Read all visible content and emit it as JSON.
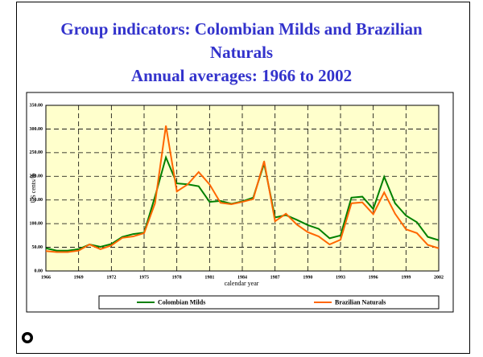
{
  "chart_data": {
    "type": "line",
    "title": "Group indicators: Colombian Milds and Brazilian Naturals",
    "subtitle": "Annual averages: 1966 to 2002",
    "x_label": "calendar year",
    "y_label": "US cents/lb",
    "x": [
      1966,
      1967,
      1968,
      1969,
      1970,
      1971,
      1972,
      1973,
      1974,
      1975,
      1976,
      1977,
      1978,
      1979,
      1980,
      1981,
      1982,
      1983,
      1984,
      1985,
      1986,
      1987,
      1988,
      1989,
      1990,
      1991,
      1992,
      1993,
      1994,
      1995,
      1996,
      1997,
      1998,
      1999,
      2000,
      2001,
      2002
    ],
    "series": [
      {
        "name": "Colombian Milds",
        "color": "#008000",
        "values": [
          48,
          43,
          43,
          46,
          56,
          51,
          57,
          72,
          78,
          81,
          157,
          240,
          185,
          183,
          179,
          146,
          148,
          142,
          147,
          155,
          227,
          113,
          118,
          108,
          97,
          89,
          69,
          75,
          155,
          157,
          131,
          199,
          143,
          117,
          103,
          72,
          65
        ]
      },
      {
        "name": "Brazilian Naturals",
        "color": "#ff6600",
        "values": [
          42,
          40,
          40,
          43,
          56,
          46,
          54,
          70,
          73,
          80,
          143,
          307,
          168,
          183,
          209,
          183,
          144,
          141,
          146,
          152,
          232,
          105,
          121,
          98,
          82,
          73,
          56,
          66,
          143,
          145,
          120,
          166,
          121,
          88,
          80,
          55,
          48
        ]
      }
    ],
    "xlim": [
      1966,
      2002
    ],
    "xticks": [
      1966,
      1969,
      1972,
      1975,
      1978,
      1981,
      1984,
      1987,
      1990,
      1993,
      1996,
      1999,
      2002
    ],
    "ylim": [
      0,
      350
    ],
    "yticks": [
      {
        "value": 0,
        "label": "0.00"
      },
      {
        "value": 50,
        "label": "50.00"
      },
      {
        "value": 100,
        "label": "100.00"
      },
      {
        "value": 150,
        "label": "150.00"
      },
      {
        "value": 200,
        "label": "200.00"
      },
      {
        "value": 250,
        "label": "250.00"
      },
      {
        "value": 300,
        "label": "300.00"
      },
      {
        "value": 350,
        "label": "350.00"
      }
    ],
    "grid": true,
    "legend": "bottom"
  }
}
